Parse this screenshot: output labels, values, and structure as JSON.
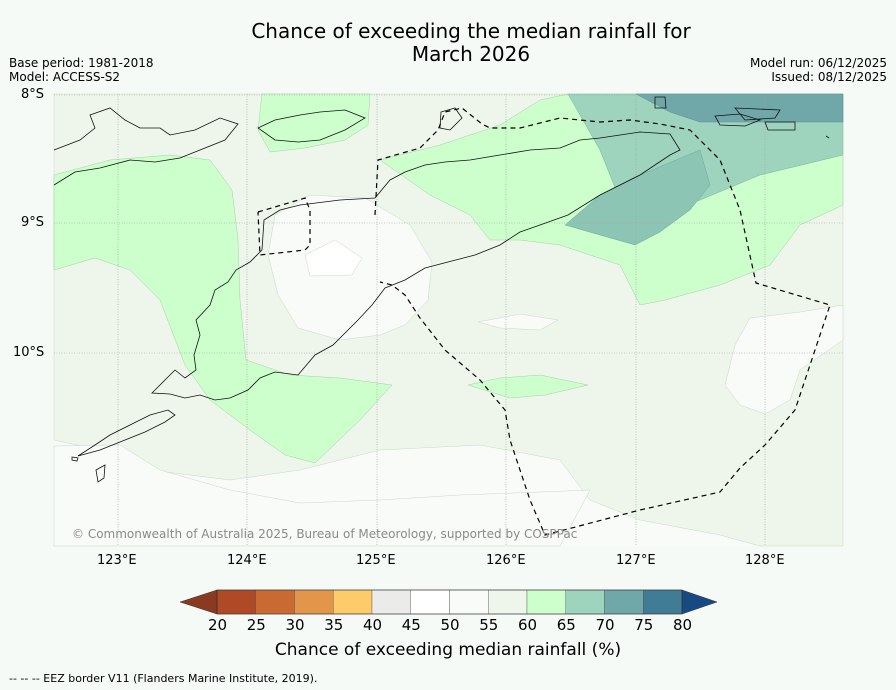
{
  "title_line1": "Chance of exceeding the median rainfall for",
  "title_line2": "March 2026",
  "base_period": "Base period: 1981-2018",
  "model": "Model: ACCESS-S2",
  "model_run": "Model run: 06/12/2025",
  "issued": "Issued: 08/12/2025",
  "latitudes": [
    "8°S",
    "9°S",
    "10°S"
  ],
  "longitudes": [
    "123°E",
    "124°E",
    "125°E",
    "126°E",
    "127°E",
    "128°E"
  ],
  "copyright": "© Commonwealth of Australia 2025, Bureau of Meteorology, supported by COSPPac",
  "colorbar": {
    "label": "Chance of exceeding median rainfall (%)",
    "ticks": [
      "20",
      "25",
      "30",
      "35",
      "40",
      "45",
      "50",
      "55",
      "60",
      "65",
      "70",
      "75",
      "80"
    ],
    "colors": [
      "#b04a26",
      "#ca6a33",
      "#e3954a",
      "#fdcb6a",
      "#ebebe9",
      "#ffffff",
      "#f8fbf7",
      "#eef6ec",
      "#ccffcc",
      "#9ed3be",
      "#70a8a9",
      "#407c96",
      "#174a82",
      "#8b3a22"
    ]
  },
  "footer": "--  --  -- EEZ border V11 (Flanders Marine Institute, 2019)."
}
